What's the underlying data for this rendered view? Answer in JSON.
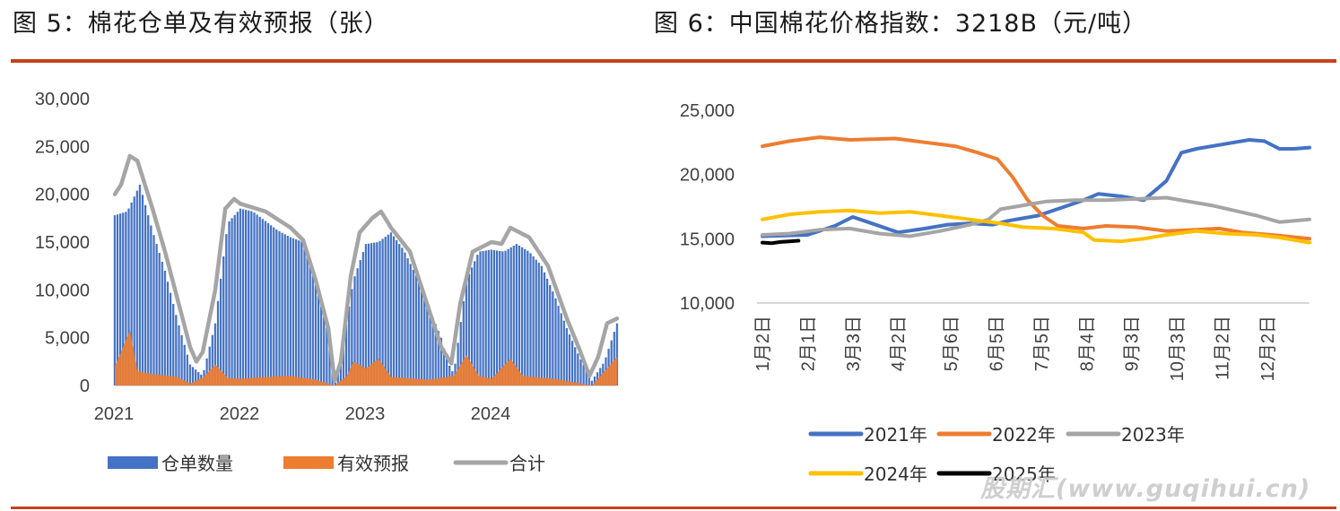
{
  "titles": {
    "left": "图 5：棉花仓单及有效预报（张）",
    "right": "图 6：中国棉花价格指数：3218B（元/吨）"
  },
  "watermark": "股期汇(www.guqihui.cn)",
  "chart_data": [
    {
      "type": "bar",
      "title": "图 5：棉花仓单及有效预报（张）",
      "ylim": [
        0,
        30000
      ],
      "yticks": [
        "30,000",
        "25,000",
        "20,000",
        "15,000",
        "10,000",
        "5,000",
        "0"
      ],
      "xticks": [
        "2021",
        "2022",
        "2023",
        "2024"
      ],
      "x_start": 2021.0,
      "x_end": 2025.0,
      "legend": {
        "position": "bottom"
      },
      "colors": {
        "仓单数量": "#4472c4",
        "有效预报": "#ed7d31",
        "合计": "#a5a5a5"
      },
      "series": [
        {
          "name": "仓单数量",
          "kind": "bar",
          "points": [
            [
              2021.0,
              17800
            ],
            [
              2021.1,
              18200
            ],
            [
              2021.2,
              21000
            ],
            [
              2021.3,
              16200
            ],
            [
              2021.4,
              12000
            ],
            [
              2021.5,
              6800
            ],
            [
              2021.6,
              2200
            ],
            [
              2021.7,
              1000
            ],
            [
              2021.8,
              6500
            ],
            [
              2021.9,
              17000
            ],
            [
              2022.0,
              18500
            ],
            [
              2022.1,
              18200
            ],
            [
              2022.2,
              17200
            ],
            [
              2022.3,
              16200
            ],
            [
              2022.4,
              15500
            ],
            [
              2022.5,
              15000
            ],
            [
              2022.6,
              10500
            ],
            [
              2022.7,
              5500
            ],
            [
              2022.75,
              0
            ],
            [
              2022.8,
              2800
            ],
            [
              2022.9,
              11000
            ],
            [
              2023.0,
              14800
            ],
            [
              2023.1,
              15000
            ],
            [
              2023.2,
              16000
            ],
            [
              2023.3,
              14200
            ],
            [
              2023.4,
              11500
            ],
            [
              2023.5,
              8200
            ],
            [
              2023.6,
              5000
            ],
            [
              2023.65,
              2500
            ],
            [
              2023.7,
              1200
            ],
            [
              2023.8,
              11000
            ],
            [
              2023.9,
              14000
            ],
            [
              2024.0,
              14200
            ],
            [
              2024.1,
              14000
            ],
            [
              2024.2,
              14800
            ],
            [
              2024.3,
              14000
            ],
            [
              2024.4,
              12500
            ],
            [
              2024.5,
              9500
            ],
            [
              2024.6,
              6000
            ],
            [
              2024.7,
              3000
            ],
            [
              2024.8,
              500
            ],
            [
              2024.9,
              2500
            ],
            [
              2025.0,
              6500
            ]
          ]
        },
        {
          "name": "有效预报",
          "kind": "area",
          "points": [
            [
              2021.0,
              2000
            ],
            [
              2021.05,
              3500
            ],
            [
              2021.12,
              5800
            ],
            [
              2021.18,
              1500
            ],
            [
              2021.3,
              1200
            ],
            [
              2021.5,
              900
            ],
            [
              2021.6,
              200
            ],
            [
              2021.7,
              800
            ],
            [
              2021.8,
              2200
            ],
            [
              2021.9,
              800
            ],
            [
              2022.0,
              700
            ],
            [
              2022.2,
              900
            ],
            [
              2022.4,
              1000
            ],
            [
              2022.6,
              600
            ],
            [
              2022.75,
              0
            ],
            [
              2022.85,
              1000
            ],
            [
              2022.9,
              2500
            ],
            [
              2023.0,
              1800
            ],
            [
              2023.1,
              2800
            ],
            [
              2023.2,
              900
            ],
            [
              2023.5,
              600
            ],
            [
              2023.7,
              1000
            ],
            [
              2023.8,
              3200
            ],
            [
              2023.9,
              1000
            ],
            [
              2024.0,
              700
            ],
            [
              2024.15,
              2800
            ],
            [
              2024.25,
              1000
            ],
            [
              2024.5,
              700
            ],
            [
              2024.8,
              0
            ],
            [
              2024.9,
              1500
            ],
            [
              2025.0,
              3000
            ]
          ]
        },
        {
          "name": "合计",
          "kind": "line",
          "points": [
            [
              2021.0,
              20000
            ],
            [
              2021.05,
              21000
            ],
            [
              2021.12,
              24000
            ],
            [
              2021.18,
              23500
            ],
            [
              2021.3,
              18500
            ],
            [
              2021.4,
              14000
            ],
            [
              2021.5,
              9000
            ],
            [
              2021.6,
              4000
            ],
            [
              2021.65,
              2500
            ],
            [
              2021.7,
              3500
            ],
            [
              2021.8,
              10000
            ],
            [
              2021.88,
              18500
            ],
            [
              2021.95,
              19500
            ],
            [
              2022.0,
              19000
            ],
            [
              2022.2,
              18200
            ],
            [
              2022.4,
              16500
            ],
            [
              2022.5,
              15200
            ],
            [
              2022.6,
              11000
            ],
            [
              2022.7,
              6000
            ],
            [
              2022.75,
              500
            ],
            [
              2022.8,
              2500
            ],
            [
              2022.88,
              11500
            ],
            [
              2022.95,
              16000
            ],
            [
              2023.05,
              17500
            ],
            [
              2023.12,
              18200
            ],
            [
              2023.2,
              16500
            ],
            [
              2023.35,
              14000
            ],
            [
              2023.5,
              8000
            ],
            [
              2023.6,
              4000
            ],
            [
              2023.68,
              2300
            ],
            [
              2023.75,
              8500
            ],
            [
              2023.85,
              14000
            ],
            [
              2024.0,
              15000
            ],
            [
              2024.08,
              14800
            ],
            [
              2024.15,
              16500
            ],
            [
              2024.3,
              15500
            ],
            [
              2024.45,
              12500
            ],
            [
              2024.6,
              7000
            ],
            [
              2024.7,
              3800
            ],
            [
              2024.78,
              1000
            ],
            [
              2024.85,
              3000
            ],
            [
              2024.92,
              6500
            ],
            [
              2025.0,
              7000
            ]
          ]
        }
      ]
    },
    {
      "type": "line",
      "title": "图 6：中国棉花价格指数：3218B（元/吨）",
      "ylim": [
        10000,
        25000
      ],
      "yticks": [
        "25,000",
        "20,000",
        "15,000",
        "10,000"
      ],
      "xticks": [
        "1月2日",
        "2月1日",
        "3月3日",
        "4月2日",
        "5月6日",
        "6月5日",
        "7月5日",
        "8月4日",
        "9月3日",
        "10月3日",
        "11月2日",
        "12月2日"
      ],
      "x_unit": "day of year",
      "x_range": [
        2,
        365
      ],
      "legend": {
        "position": "bottom"
      },
      "colors": {
        "2021年": "#4472c4",
        "2022年": "#ed7d31",
        "2023年": "#a5a5a5",
        "2024年": "#ffc000",
        "2025年": "#000000"
      },
      "series": [
        {
          "name": "2021年",
          "points": [
            [
              2,
              15200
            ],
            [
              32,
              15300
            ],
            [
              50,
              16000
            ],
            [
              62,
              16700
            ],
            [
              72,
              16300
            ],
            [
              92,
              15500
            ],
            [
              110,
              15800
            ],
            [
              125,
              16100
            ],
            [
              140,
              16200
            ],
            [
              155,
              16100
            ],
            [
              165,
              16400
            ],
            [
              185,
              16800
            ],
            [
              205,
              17600
            ],
            [
              215,
              18000
            ],
            [
              225,
              18500
            ],
            [
              240,
              18300
            ],
            [
              255,
              18000
            ],
            [
              270,
              19500
            ],
            [
              280,
              21700
            ],
            [
              290,
              22000
            ],
            [
              305,
              22300
            ],
            [
              325,
              22700
            ],
            [
              335,
              22600
            ],
            [
              345,
              22000
            ],
            [
              355,
              22000
            ],
            [
              365,
              22100
            ]
          ]
        },
        {
          "name": "2022年",
          "points": [
            [
              2,
              22200
            ],
            [
              20,
              22600
            ],
            [
              40,
              22900
            ],
            [
              60,
              22700
            ],
            [
              90,
              22800
            ],
            [
              110,
              22500
            ],
            [
              130,
              22200
            ],
            [
              145,
              21700
            ],
            [
              158,
              21200
            ],
            [
              168,
              19800
            ],
            [
              178,
              18000
            ],
            [
              188,
              16800
            ],
            [
              198,
              16000
            ],
            [
              215,
              15800
            ],
            [
              230,
              16000
            ],
            [
              250,
              15900
            ],
            [
              270,
              15600
            ],
            [
              290,
              15700
            ],
            [
              305,
              15800
            ],
            [
              320,
              15500
            ],
            [
              340,
              15300
            ],
            [
              365,
              15000
            ]
          ]
        },
        {
          "name": "2023年",
          "points": [
            [
              2,
              15300
            ],
            [
              20,
              15400
            ],
            [
              40,
              15700
            ],
            [
              60,
              15800
            ],
            [
              80,
              15400
            ],
            [
              100,
              15200
            ],
            [
              120,
              15600
            ],
            [
              140,
              16100
            ],
            [
              152,
              16500
            ],
            [
              160,
              17300
            ],
            [
              175,
              17600
            ],
            [
              190,
              17900
            ],
            [
              210,
              18000
            ],
            [
              230,
              18000
            ],
            [
              250,
              18100
            ],
            [
              270,
              18200
            ],
            [
              285,
              17900
            ],
            [
              300,
              17600
            ],
            [
              315,
              17200
            ],
            [
              330,
              16800
            ],
            [
              345,
              16300
            ],
            [
              365,
              16500
            ]
          ]
        },
        {
          "name": "2024年",
          "points": [
            [
              2,
              16500
            ],
            [
              20,
              16900
            ],
            [
              40,
              17100
            ],
            [
              60,
              17200
            ],
            [
              80,
              17000
            ],
            [
              100,
              17100
            ],
            [
              120,
              16800
            ],
            [
              140,
              16500
            ],
            [
              160,
              16200
            ],
            [
              175,
              15900
            ],
            [
              195,
              15800
            ],
            [
              215,
              15500
            ],
            [
              222,
              14900
            ],
            [
              240,
              14800
            ],
            [
              255,
              15000
            ],
            [
              270,
              15300
            ],
            [
              290,
              15600
            ],
            [
              310,
              15400
            ],
            [
              330,
              15300
            ],
            [
              345,
              15100
            ],
            [
              355,
              14900
            ],
            [
              365,
              14700
            ]
          ]
        },
        {
          "name": "2025年",
          "points": [
            [
              2,
              14700
            ],
            [
              8,
              14650
            ],
            [
              14,
              14750
            ],
            [
              20,
              14800
            ],
            [
              26,
              14850
            ]
          ]
        }
      ]
    }
  ]
}
